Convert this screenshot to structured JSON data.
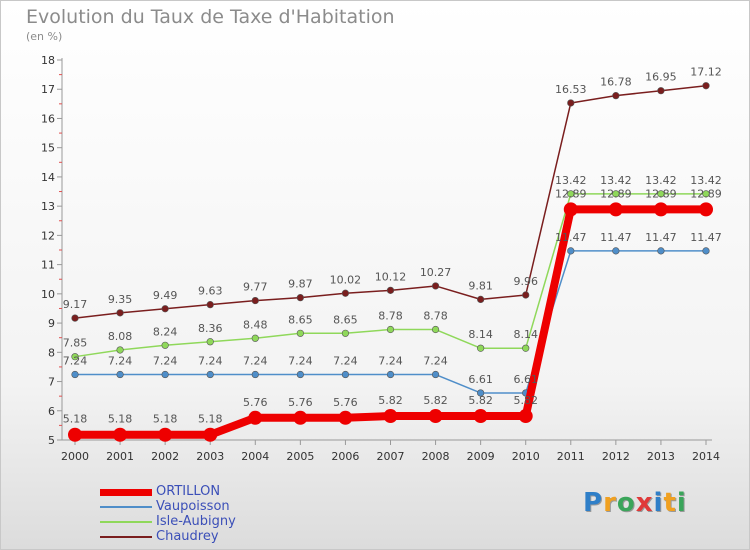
{
  "chart_data": {
    "type": "line",
    "title": "Evolution du Taux de Taxe d'Habitation",
    "subtitle": "(en %)",
    "xlabel": "",
    "ylabel": "",
    "x": [
      "2000",
      "2001",
      "2002",
      "2003",
      "2004",
      "2005",
      "2006",
      "2007",
      "2008",
      "2009",
      "2010",
      "2011",
      "2012",
      "2013",
      "2014"
    ],
    "ylim": [
      5,
      18
    ],
    "yticks": [
      "5",
      "6",
      "7",
      "8",
      "9",
      "10",
      "11",
      "12",
      "13",
      "14",
      "15",
      "16",
      "17",
      "18"
    ],
    "grid": false,
    "legend_position": "bottom-left",
    "series": [
      {
        "name": "ORTILLON",
        "color": "#ee0000",
        "values": [
          5.18,
          5.18,
          5.18,
          5.18,
          5.76,
          5.76,
          5.76,
          5.82,
          5.82,
          5.82,
          5.82,
          12.89,
          12.89,
          12.89,
          12.89
        ],
        "labels": [
          "5.18",
          "5.18",
          "5.18",
          "5.18",
          "5.76",
          "5.76",
          "5.76",
          "5.82",
          "5.82",
          "5.82",
          "5.82",
          "12.89",
          "12.89",
          "12.89",
          "12.89"
        ]
      },
      {
        "name": "Vaupoisson",
        "color": "#4f8ec9",
        "values": [
          7.24,
          7.24,
          7.24,
          7.24,
          7.24,
          7.24,
          7.24,
          7.24,
          7.24,
          6.61,
          6.61,
          11.47,
          11.47,
          11.47,
          11.47
        ],
        "labels": [
          "7.24",
          "7.24",
          "7.24",
          "7.24",
          "7.24",
          "7.24",
          "7.24",
          "7.24",
          "7.24",
          "6.61",
          "6.61",
          "11.47",
          "11.47",
          "11.47",
          "11.47"
        ]
      },
      {
        "name": "Isle-Aubigny",
        "color": "#8fd85a",
        "values": [
          7.85,
          8.08,
          8.24,
          8.36,
          8.48,
          8.65,
          8.65,
          8.78,
          8.78,
          8.14,
          8.14,
          13.42,
          13.42,
          13.42,
          13.42
        ],
        "labels": [
          "7.85",
          "8.08",
          "8.24",
          "8.36",
          "8.48",
          "8.65",
          "8.65",
          "8.78",
          "8.78",
          "8.14",
          "8.14",
          "13.42",
          "13.42",
          "13.42",
          "13.42"
        ]
      },
      {
        "name": "Chaudrey",
        "color": "#7a1e1e",
        "values": [
          9.17,
          9.35,
          9.49,
          9.63,
          9.77,
          9.87,
          10.02,
          10.12,
          10.27,
          9.81,
          9.96,
          16.53,
          16.78,
          16.95,
          17.12
        ],
        "labels": [
          "9.17",
          "9.35",
          "9.49",
          "9.63",
          "9.77",
          "9.87",
          "10.02",
          "10.12",
          "10.27",
          "9.81",
          "9.96",
          "16.53",
          "16.78",
          "16.95",
          "17.12"
        ]
      }
    ]
  },
  "logo": {
    "letters": [
      "P",
      "r",
      "o",
      "x",
      "i",
      "t",
      "i"
    ],
    "colors": [
      "#2f7fc8",
      "#f0a020",
      "#3aa55a",
      "#e03a3a",
      "#2f7fc8",
      "#f0a020",
      "#3aa55a"
    ]
  }
}
